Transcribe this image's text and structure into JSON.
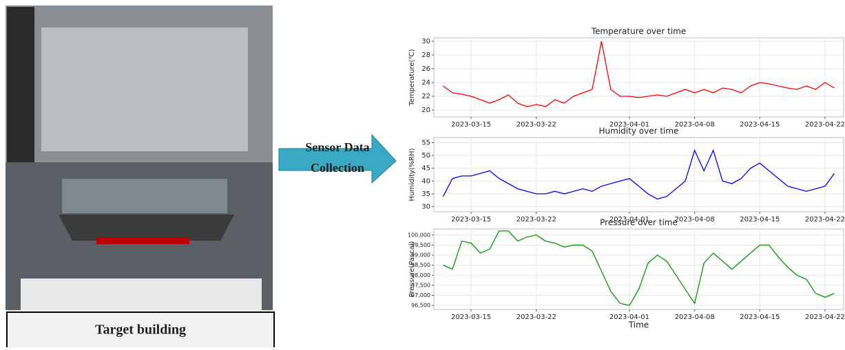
{
  "arrow_label": [
    "Sensor Data",
    "Collection"
  ],
  "photo_caption": "Target building",
  "chart_data": [
    {
      "type": "line",
      "title": "Temperature over time",
      "ylabel": "Temperature(℃)",
      "color": "#ff0000",
      "x": [
        "2023-03-12",
        "2023-03-13",
        "2023-03-14",
        "2023-03-15",
        "2023-03-16",
        "2023-03-17",
        "2023-03-18",
        "2023-03-19",
        "2023-03-20",
        "2023-03-21",
        "2023-03-22",
        "2023-03-23",
        "2023-03-24",
        "2023-03-25",
        "2023-03-26",
        "2023-03-27",
        "2023-03-28",
        "2023-03-29",
        "2023-03-30",
        "2023-03-31",
        "2023-04-01",
        "2023-04-02",
        "2023-04-03",
        "2023-04-04",
        "2023-04-05",
        "2023-04-06",
        "2023-04-07",
        "2023-04-08",
        "2023-04-09",
        "2023-04-10",
        "2023-04-11",
        "2023-04-12",
        "2023-04-13",
        "2023-04-14",
        "2023-04-15",
        "2023-04-16",
        "2023-04-17",
        "2023-04-18",
        "2023-04-19",
        "2023-04-20",
        "2023-04-21",
        "2023-04-22",
        "2023-04-23"
      ],
      "values": [
        23.5,
        22.5,
        22.3,
        22,
        21.5,
        21,
        21.5,
        22.2,
        21,
        20.5,
        20.8,
        20.5,
        21.5,
        21,
        22,
        22.5,
        23,
        30,
        23,
        22,
        22,
        21.8,
        22,
        22.2,
        22,
        22.5,
        23,
        22.5,
        23,
        22.5,
        23.2,
        23,
        22.5,
        23.5,
        24,
        23.8,
        23.5,
        23.2,
        23,
        23.5,
        23,
        24,
        23.2
      ],
      "xlim": [
        "2023-03-11",
        "2023-04-24"
      ],
      "xticks": [
        "2023-03-15",
        "2023-03-22",
        "2023-04-01",
        "2023-04-08",
        "2023-04-15",
        "2023-04-22"
      ],
      "ylim": [
        19,
        30.5
      ],
      "yticks": [
        20,
        22,
        24,
        26,
        28,
        30
      ],
      "grid": true
    },
    {
      "type": "line",
      "title": "Humidity over time",
      "ylabel": "Humidity(%RH)",
      "color": "#0000ff",
      "x": [
        "2023-03-12",
        "2023-03-13",
        "2023-03-14",
        "2023-03-15",
        "2023-03-16",
        "2023-03-17",
        "2023-03-18",
        "2023-03-19",
        "2023-03-20",
        "2023-03-21",
        "2023-03-22",
        "2023-03-23",
        "2023-03-24",
        "2023-03-25",
        "2023-03-26",
        "2023-03-27",
        "2023-03-28",
        "2023-03-29",
        "2023-03-30",
        "2023-03-31",
        "2023-04-01",
        "2023-04-02",
        "2023-04-03",
        "2023-04-04",
        "2023-04-05",
        "2023-04-06",
        "2023-04-07",
        "2023-04-08",
        "2023-04-09",
        "2023-04-10",
        "2023-04-11",
        "2023-04-12",
        "2023-04-13",
        "2023-04-14",
        "2023-04-15",
        "2023-04-16",
        "2023-04-17",
        "2023-04-18",
        "2023-04-19",
        "2023-04-20",
        "2023-04-21",
        "2023-04-22",
        "2023-04-23"
      ],
      "values": [
        34,
        41,
        42,
        42,
        43,
        44,
        41,
        39,
        37,
        36,
        35,
        35,
        36,
        35,
        36,
        37,
        36,
        38,
        39,
        40,
        41,
        38,
        35,
        33,
        34,
        37,
        40,
        52,
        44,
        52,
        40,
        39,
        41,
        45,
        47,
        44,
        41,
        38,
        37,
        36,
        37,
        38,
        43
      ],
      "xlim": [
        "2023-03-11",
        "2023-04-24"
      ],
      "xticks": [
        "2023-03-15",
        "2023-03-22",
        "2023-04-01",
        "2023-04-08",
        "2023-04-15",
        "2023-04-22"
      ],
      "ylim": [
        28,
        57
      ],
      "yticks": [
        30,
        35,
        40,
        45,
        50,
        55
      ],
      "grid": true
    },
    {
      "type": "line",
      "title": "Pressure over time",
      "ylabel": "Pressure(Pascal)",
      "xlabel": "Time",
      "color": "#009900",
      "x": [
        "2023-03-12",
        "2023-03-13",
        "2023-03-14",
        "2023-03-15",
        "2023-03-16",
        "2023-03-17",
        "2023-03-18",
        "2023-03-19",
        "2023-03-20",
        "2023-03-21",
        "2023-03-22",
        "2023-03-23",
        "2023-03-24",
        "2023-03-25",
        "2023-03-26",
        "2023-03-27",
        "2023-03-28",
        "2023-03-29",
        "2023-03-30",
        "2023-03-31",
        "2023-04-01",
        "2023-04-02",
        "2023-04-03",
        "2023-04-04",
        "2023-04-05",
        "2023-04-06",
        "2023-04-07",
        "2023-04-08",
        "2023-04-09",
        "2023-04-10",
        "2023-04-11",
        "2023-04-12",
        "2023-04-13",
        "2023-04-14",
        "2023-04-15",
        "2023-04-16",
        "2023-04-17",
        "2023-04-18",
        "2023-04-19",
        "2023-04-20",
        "2023-04-21",
        "2023-04-22",
        "2023-04-23"
      ],
      "values": [
        98500,
        98300,
        99700,
        99600,
        99100,
        99300,
        100200,
        100200,
        99700,
        99900,
        100000,
        99700,
        99600,
        99400,
        99500,
        99500,
        99200,
        98200,
        97200,
        96600,
        96500,
        97300,
        98600,
        99000,
        98700,
        98000,
        97300,
        96600,
        98600,
        99100,
        98700,
        98300,
        98700,
        99100,
        99500,
        99500,
        98900,
        98400,
        98000,
        97800,
        97100,
        96900,
        97100
      ],
      "xlim": [
        "2023-03-11",
        "2023-04-24"
      ],
      "xticks": [
        "2023-03-15",
        "2023-03-22",
        "2023-04-01",
        "2023-04-08",
        "2023-04-15",
        "2023-04-22"
      ],
      "ylim": [
        96300,
        100300
      ],
      "yticks": [
        {
          "value": 96500,
          "label": "96,500"
        },
        {
          "value": 97000,
          "label": "97,000"
        },
        {
          "value": 97500,
          "label": "97,500"
        },
        {
          "value": 98000,
          "label": "98,000"
        },
        {
          "value": 98500,
          "label": "98,500"
        },
        {
          "value": 99000,
          "label": "99,000"
        },
        {
          "value": 99500,
          "label": "99,500"
        },
        {
          "value": 100000,
          "label": "100,000"
        }
      ],
      "grid": true
    }
  ]
}
